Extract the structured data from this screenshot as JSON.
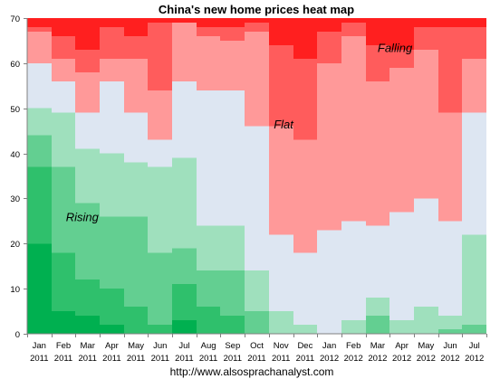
{
  "chart_data": {
    "type": "heatmap",
    "title": "China's new home prices heat map",
    "source_url": "http://www.alsosprachanalyst.com",
    "ylim": [
      0,
      70
    ],
    "y_ticks": [
      "0",
      "10",
      "20",
      "30",
      "40",
      "50",
      "60",
      "70"
    ],
    "x_tick_labels": [
      {
        "month": "Jan",
        "year": "2011"
      },
      {
        "month": "Feb",
        "year": "2011"
      },
      {
        "month": "Mar",
        "year": "2011"
      },
      {
        "month": "Apr",
        "year": "2011"
      },
      {
        "month": "May",
        "year": "2011"
      },
      {
        "month": "Jun",
        "year": "2011"
      },
      {
        "month": "Jul",
        "year": "2011"
      },
      {
        "month": "Aug",
        "year": "2011"
      },
      {
        "month": "Sep",
        "year": "2011"
      },
      {
        "month": "Oct",
        "year": "2011"
      },
      {
        "month": "Nov",
        "year": "2011"
      },
      {
        "month": "Dec",
        "year": "2011"
      },
      {
        "month": "Jan",
        "year": "2012"
      },
      {
        "month": "Feb",
        "year": "2012"
      },
      {
        "month": "Mar",
        "year": "2012"
      },
      {
        "month": "Apr",
        "year": "2012"
      },
      {
        "month": "May",
        "year": "2012"
      },
      {
        "month": "Jun",
        "year": "2012"
      },
      {
        "month": "Jul",
        "year": "2012"
      }
    ],
    "region_labels": [
      {
        "text": "Falling",
        "x": 14.5,
        "y": 62.5
      },
      {
        "text": "Flat",
        "x": 10.2,
        "y": 45.5
      },
      {
        "text": "Rising",
        "x": 1.6,
        "y": 25
      }
    ],
    "columns": [
      [
        20,
        37,
        44,
        50,
        60,
        67,
        68,
        70
      ],
      [
        5,
        18,
        37,
        49,
        56,
        61,
        66,
        70
      ],
      [
        4,
        12,
        29,
        41,
        49,
        58,
        63,
        70
      ],
      [
        2,
        10,
        26,
        40,
        56,
        61,
        68,
        70
      ],
      [
        0,
        6,
        26,
        38,
        49,
        61,
        66,
        70
      ],
      [
        0,
        2,
        18,
        37,
        43,
        54,
        69,
        70
      ],
      [
        3,
        11,
        19,
        39,
        56,
        69,
        69,
        70
      ],
      [
        0,
        6,
        14,
        24,
        54,
        66,
        68,
        70
      ],
      [
        0,
        4,
        14,
        24,
        54,
        65,
        68,
        70
      ],
      [
        0,
        0,
        5,
        14,
        46,
        67,
        69,
        70
      ],
      [
        0,
        0,
        0,
        5,
        22,
        46,
        64,
        70
      ],
      [
        0,
        0,
        0,
        2,
        18,
        43,
        61,
        70
      ],
      [
        0,
        0,
        0,
        0,
        23,
        60,
        67,
        70
      ],
      [
        0,
        0,
        0,
        3,
        25,
        66,
        69,
        70
      ],
      [
        0,
        0,
        4,
        8,
        24,
        56,
        64,
        70
      ],
      [
        0,
        0,
        0,
        3,
        27,
        59,
        63,
        70
      ],
      [
        0,
        0,
        0,
        6,
        30,
        63,
        68,
        70
      ],
      [
        0,
        0,
        1,
        4,
        25,
        49,
        68,
        70
      ],
      [
        0,
        0,
        2,
        22,
        49,
        61,
        68,
        70
      ]
    ],
    "band_colors": [
      "#00b050",
      "#2fc06c",
      "#63cf91",
      "#9fe0bd",
      "#dde6f2",
      "#ff9999",
      "#ff5c5c",
      "#ff1f1f"
    ],
    "colors": {
      "background": "#ffffff",
      "axis": "#808080",
      "text": "#000000"
    }
  }
}
